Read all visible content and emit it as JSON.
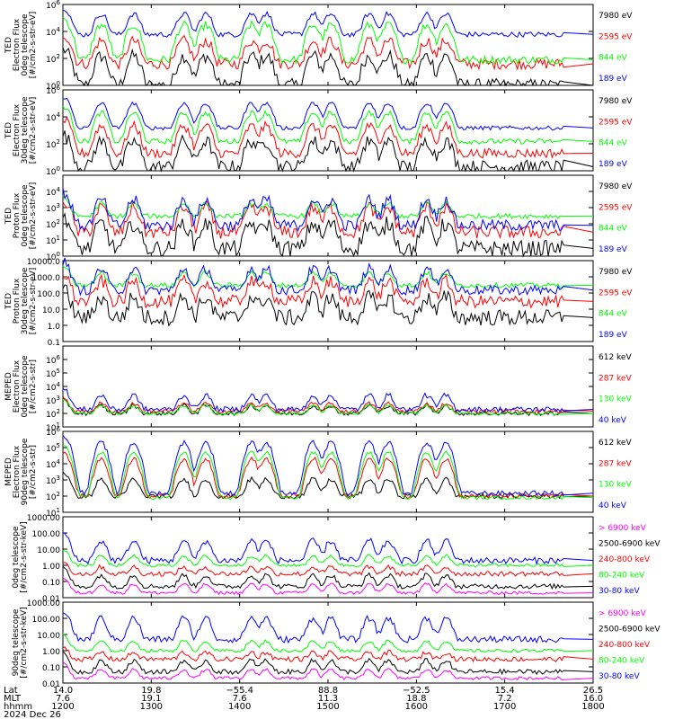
{
  "chart_data": [
    {
      "type": "line",
      "ylabel": "TED Electron Flux 0deg telescope [#/cm2-s-str-eV]",
      "ylabel_lines": [
        "TED",
        "Electron Flux",
        "0deg telescope",
        "[#/cm2-s-str-eV]"
      ],
      "log": true,
      "ylim": [
        1,
        1000000
      ],
      "ytick_labels": [
        "10^0",
        "10^2",
        "10^4",
        "10^6"
      ],
      "ytick_values": [
        1,
        100,
        10000,
        1000000
      ],
      "series": [
        {
          "name": "7980 eV",
          "color": "#000000",
          "base": 1,
          "burst": 150,
          "noise": 1.0
        },
        {
          "name": "2595 eV",
          "color": "#ff0000",
          "base": 40,
          "burst": 2000,
          "noise": 0.8
        },
        {
          "name": "844 eV",
          "color": "#00ff00",
          "base": 80,
          "burst": 30000,
          "noise": 0.6
        },
        {
          "name": "189 eV",
          "color": "#0000ff",
          "base": 6000,
          "burst": 200000,
          "noise": 0.4
        }
      ]
    },
    {
      "type": "line",
      "ylabel": "TED Electron Flux 30deg telescope [#/cm2-s-str-eV]",
      "ylabel_lines": [
        "TED",
        "Electron Flux",
        "30deg telescope",
        "[#/cm2-s-str-eV]"
      ],
      "log": true,
      "ylim": [
        1,
        1000000
      ],
      "ytick_labels": [
        "10^0",
        "10^2",
        "10^4",
        "10^6"
      ],
      "ytick_values": [
        1,
        100,
        10000,
        1000000
      ],
      "series": [
        {
          "name": "7980 eV",
          "color": "#000000",
          "base": 2,
          "burst": 150,
          "noise": 1.0
        },
        {
          "name": "2595 eV",
          "color": "#ff0000",
          "base": 20,
          "burst": 2000,
          "noise": 0.7
        },
        {
          "name": "844 eV",
          "color": "#00ff00",
          "base": 150,
          "burst": 20000,
          "noise": 0.4
        },
        {
          "name": "189 eV",
          "color": "#0000ff",
          "base": 1500,
          "burst": 100000,
          "noise": 0.3
        }
      ]
    },
    {
      "type": "line",
      "ylabel": "TED Proton Flux 0deg telescope [#/cm2-s-str-eV]",
      "ylabel_lines": [
        "TED",
        "Proton Flux",
        "0deg telescope",
        "[#/cm2-s-str-eV]"
      ],
      "log": true,
      "ylim": [
        1,
        100000
      ],
      "ytick_labels": [
        "10^0",
        "10^1",
        "10^2",
        "10^3",
        "10^4"
      ],
      "ytick_values": [
        1,
        10,
        100,
        1000,
        10000
      ],
      "series": [
        {
          "name": "7980 eV",
          "color": "#000000",
          "base": 3,
          "burst": 100,
          "noise": 1.0
        },
        {
          "name": "2595 eV",
          "color": "#ff0000",
          "base": 30,
          "burst": 1000,
          "noise": 0.8
        },
        {
          "name": "844 eV",
          "color": "#00ff00",
          "base": 300,
          "burst": 1500,
          "noise": 0.3
        },
        {
          "name": "189 eV",
          "color": "#0000ff",
          "base": 80,
          "burst": 3000,
          "noise": 0.7
        }
      ]
    },
    {
      "type": "line",
      "ylabel": "TED Proton Flux 30deg telescope [#/cm2-s-str-eV]",
      "ylabel_lines": [
        "TED",
        "Proton Flux",
        "30deg telescope",
        "[#/cm2-s-str-eV]"
      ],
      "log": true,
      "ylim": [
        0.1,
        10000
      ],
      "ytick_labels": [
        "0.1",
        "1.0",
        "10.0",
        "100.0",
        "1000.0",
        "10000.0"
      ],
      "ytick_values": [
        0.1,
        1,
        10,
        100,
        1000,
        10000
      ],
      "series": [
        {
          "name": "7980 eV",
          "color": "#000000",
          "base": 3,
          "burst": 50,
          "noise": 1.0
        },
        {
          "name": "2595 eV",
          "color": "#ff0000",
          "base": 30,
          "burst": 500,
          "noise": 0.8
        },
        {
          "name": "844 eV",
          "color": "#00ff00",
          "base": 300,
          "burst": 1500,
          "noise": 0.3
        },
        {
          "name": "189 eV",
          "color": "#0000ff",
          "base": 150,
          "burst": 3000,
          "noise": 0.6
        }
      ]
    },
    {
      "type": "line",
      "ylabel": "MEPED Electron Flux 0deg telescope [#/cm2-s-str]",
      "ylabel_lines": [
        "MEPED",
        "Electron Flux",
        "0deg telescope",
        "[#/cm2-s-str]"
      ],
      "log": true,
      "ylim": [
        10,
        10000000
      ],
      "ytick_labels": [
        "10^1",
        "10^2",
        "10^3",
        "10^4",
        "10^5",
        "10^6"
      ],
      "ytick_values": [
        10,
        100,
        1000,
        10000,
        100000,
        1000000
      ],
      "series": [
        {
          "name": "612 keV",
          "color": "#000000",
          "base": 100,
          "burst": 300,
          "noise": 0.3
        },
        {
          "name": "287 keV",
          "color": "#ff0000",
          "base": 150,
          "burst": 400,
          "noise": 0.3
        },
        {
          "name": "130 keV",
          "color": "#00ff00",
          "base": 100,
          "burst": 300,
          "noise": 0.2
        },
        {
          "name": "40 keV",
          "color": "#0000ff",
          "base": 200,
          "burst": 2000,
          "noise": 0.4
        }
      ]
    },
    {
      "type": "line",
      "ylabel": "MEPED Electron Flux 90deg telescope [#/cm2-s-str]",
      "ylabel_lines": [
        "MEPED",
        "Electron Flux",
        "90deg telescope",
        "[#/cm2-s-str]"
      ],
      "log": true,
      "ylim": [
        10,
        1000000
      ],
      "ytick_labels": [
        "10^1",
        "10^2",
        "10^3",
        "10^4",
        "10^5",
        "10^6"
      ],
      "ytick_values": [
        10,
        100,
        1000,
        10000,
        100000,
        1000000
      ],
      "series": [
        {
          "name": "612 keV",
          "color": "#000000",
          "base": 100,
          "burst": 1000,
          "noise": 0.3
        },
        {
          "name": "287 keV",
          "color": "#ff0000",
          "base": 100,
          "burst": 20000,
          "noise": 0.3
        },
        {
          "name": "130 keV",
          "color": "#00ff00",
          "base": 80,
          "burst": 50000,
          "noise": 0.2
        },
        {
          "name": "40 keV",
          "color": "#0000ff",
          "base": 150,
          "burst": 200000,
          "noise": 0.3
        }
      ]
    },
    {
      "type": "line",
      "ylabel": "MEPED Proton Flux 0deg telescope [#/cm2-s-str-keV]",
      "ylabel_lines": [
        "0deg telescope",
        "[#/cm2-s-str-keV]"
      ],
      "log": true,
      "ylim": [
        0.01,
        1000
      ],
      "ytick_labels": [
        "0.01",
        "0.10",
        "1.00",
        "10.00",
        "100.00",
        "1000.00"
      ],
      "ytick_values": [
        0.01,
        0.1,
        1,
        10,
        100,
        1000
      ],
      "series": [
        {
          "name": "> 6900 keV",
          "color": "#ff00ff",
          "base": 0.02,
          "burst": 0.05,
          "noise": 0.2
        },
        {
          "name": "2500-6900 keV",
          "color": "#000000",
          "base": 0.05,
          "burst": 0.2,
          "noise": 0.3
        },
        {
          "name": "240-800 keV",
          "color": "#ff0000",
          "base": 0.3,
          "burst": 0.5,
          "noise": 0.3
        },
        {
          "name": "80-240 keV",
          "color": "#00ff00",
          "base": 1,
          "burst": 3,
          "noise": 0.2
        },
        {
          "name": "30-80 keV",
          "color": "#0000ff",
          "base": 2,
          "burst": 30,
          "noise": 0.4
        }
      ]
    },
    {
      "type": "line",
      "ylabel": "MEPED Proton Flux 90deg telescope [#/cm2-s-str-keV]",
      "ylabel_lines": [
        "90deg telescope",
        "[#/cm2-s-str-keV]"
      ],
      "log": true,
      "ylim": [
        0.01,
        1000
      ],
      "ytick_labels": [
        "0.01",
        "0.10",
        "1.00",
        "10.00",
        "100.00",
        "1000.00"
      ],
      "ytick_values": [
        0.01,
        0.1,
        1,
        10,
        100,
        1000
      ],
      "series": [
        {
          "name": "> 6900 keV",
          "color": "#ff00ff",
          "base": 0.02,
          "burst": 0.05,
          "noise": 0.2
        },
        {
          "name": "2500-6900 keV",
          "color": "#000000",
          "base": 0.05,
          "burst": 0.2,
          "noise": 0.3
        },
        {
          "name": "240-800 keV",
          "color": "#ff0000",
          "base": 0.3,
          "burst": 0.5,
          "noise": 0.3
        },
        {
          "name": "80-240 keV",
          "color": "#00ff00",
          "base": 1,
          "burst": 3,
          "noise": 0.2
        },
        {
          "name": "30-80 keV",
          "color": "#0000ff",
          "base": 5,
          "burst": 100,
          "noise": 0.4
        }
      ]
    }
  ],
  "x_axis": {
    "row_labels": [
      "Lat",
      "MLT",
      "hhmm"
    ],
    "ticks": [
      {
        "lat": "14.0",
        "mlt": "7.6",
        "hhmm": "1200"
      },
      {
        "lat": "19.8",
        "mlt": "19.1",
        "hhmm": "1300"
      },
      {
        "lat": "−55.4",
        "mlt": "7.6",
        "hhmm": "1400"
      },
      {
        "lat": "88.8",
        "mlt": "11.3",
        "hhmm": "1500"
      },
      {
        "lat": "−52.5",
        "mlt": "18.8",
        "hhmm": "1600"
      },
      {
        "lat": "15.4",
        "mlt": "7.2",
        "hhmm": "1700"
      },
      {
        "lat": "26.5",
        "mlt": "16.0",
        "hhmm": "1800"
      }
    ],
    "date": "2024 Dec 26"
  },
  "time_axis": {
    "start_hhmm": 1200,
    "end_hhmm": 1800,
    "data_end_hhmm": 1740
  },
  "burst_times_hhmm": [
    1226,
    1248,
    1322,
    1337,
    1408,
    1418,
    1450,
    1502,
    1528,
    1541,
    1607,
    1620
  ]
}
